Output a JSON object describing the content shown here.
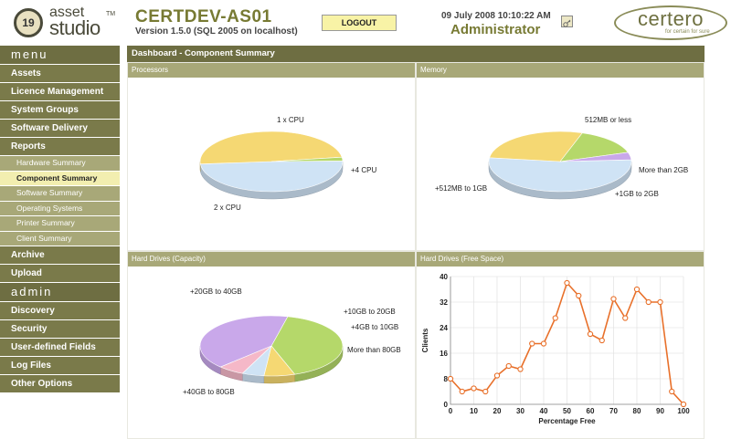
{
  "header": {
    "logo_number": "19",
    "logo_top": "asset",
    "logo_bottom": "studio",
    "logo_tm": "TM",
    "server_name": "CERTDEV-AS01",
    "version": "Version 1.5.0 (SQL 2005 on localhost)",
    "logout_label": "LOGOUT",
    "datetime": "09 July 2008  10:10:22 AM",
    "username": "Administrator",
    "brand": "certero",
    "brand_tagline": "for certain for sure"
  },
  "sidebar": {
    "menu_heading": "menu",
    "menu_items": [
      {
        "label": "Assets"
      },
      {
        "label": "Licence Management"
      },
      {
        "label": "System Groups"
      },
      {
        "label": "Software Delivery"
      },
      {
        "label": "Reports"
      }
    ],
    "report_subitems": [
      {
        "label": "Hardware Summary"
      },
      {
        "label": "Component Summary",
        "active": true
      },
      {
        "label": "Software Summary"
      },
      {
        "label": "Operating Systems"
      },
      {
        "label": "Printer Summary"
      },
      {
        "label": "Client Summary"
      }
    ],
    "after_items": [
      {
        "label": "Archive"
      },
      {
        "label": "Upload"
      }
    ],
    "admin_heading": "admin",
    "admin_items": [
      {
        "label": "Discovery"
      },
      {
        "label": "Security"
      },
      {
        "label": "User-defined Fields"
      },
      {
        "label": "Log Files"
      },
      {
        "label": "Other Options"
      }
    ]
  },
  "main": {
    "title": "Dashboard - Component Summary",
    "panels": {
      "processors": "Processors",
      "memory": "Memory",
      "hd_capacity": "Hard Drives (Capacity)",
      "hd_free": "Hard Drives (Free Space)"
    }
  },
  "colors": {
    "accent_dark": "#6e6e42",
    "accent_light": "#a8a878",
    "pie_blue": "#cfe3f5",
    "pie_yellow": "#f5d873",
    "pie_green": "#b5d86a",
    "pie_purple": "#c9a8ea",
    "pie_pink": "#f5b8c8",
    "line_orange": "#e8702a"
  },
  "chart_data": [
    {
      "type": "pie",
      "title": "Processors",
      "slices": [
        {
          "label": "1 x CPU",
          "value": 49
        },
        {
          "label": "2 x CPU",
          "value": 49
        },
        {
          "label": "+4 CPU",
          "value": 2
        }
      ]
    },
    {
      "type": "pie",
      "title": "Memory",
      "slices": [
        {
          "label": "512MB or less",
          "value": 53
        },
        {
          "label": "+512MB to 1GB",
          "value": 28
        },
        {
          "label": "+1GB to 2GB",
          "value": 15
        },
        {
          "label": "More than 2GB",
          "value": 4
        }
      ]
    },
    {
      "type": "pie",
      "title": "Hard Drives (Capacity)",
      "slices": [
        {
          "label": "+20GB to 40GB",
          "value": 41
        },
        {
          "label": "+10GB to 20GB",
          "value": 7
        },
        {
          "label": "+4GB to 10GB",
          "value": 5
        },
        {
          "label": "More than 80GB",
          "value": 6
        },
        {
          "label": "+40GB to 80GB",
          "value": 41
        }
      ]
    },
    {
      "type": "line",
      "title": "Hard Drives (Free Space)",
      "xlabel": "Percentage Free",
      "ylabel": "Clients",
      "xlim": [
        0,
        100
      ],
      "ylim": [
        0,
        40
      ],
      "xticks": [
        0,
        10,
        20,
        30,
        40,
        50,
        60,
        70,
        80,
        90,
        100
      ],
      "yticks": [
        0,
        8,
        16,
        24,
        32,
        40
      ],
      "grid": true,
      "series": [
        {
          "x": [
            0,
            5,
            10,
            15,
            20,
            25,
            30,
            35,
            40,
            45,
            50,
            55,
            60,
            65,
            70,
            75,
            80,
            85,
            90,
            95,
            100
          ],
          "y": [
            8,
            4,
            5,
            4,
            9,
            12,
            11,
            19,
            19,
            27,
            38,
            34,
            22,
            20,
            33,
            27,
            36,
            32,
            32,
            4,
            0
          ]
        }
      ]
    }
  ]
}
